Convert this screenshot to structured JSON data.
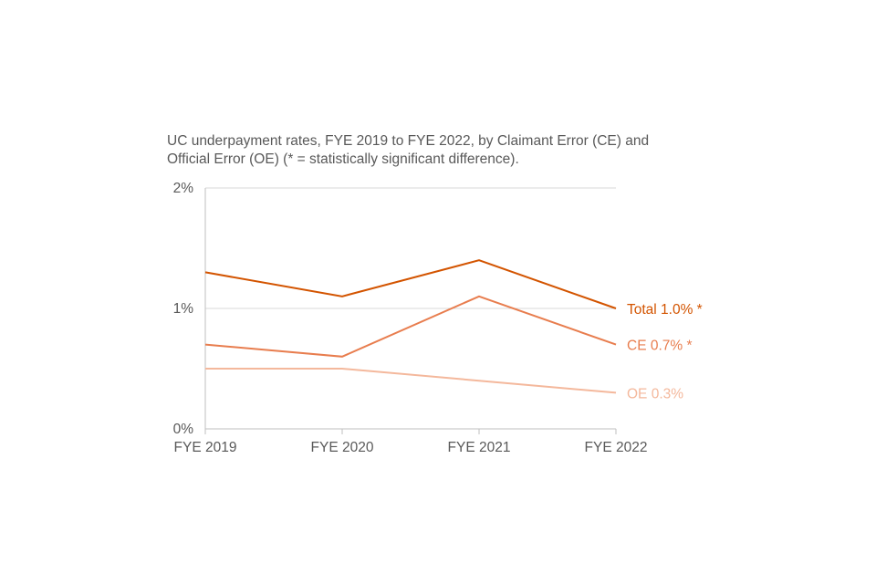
{
  "chart_data": {
    "type": "line",
    "title_lines": [
      "UC underpayment rates, FYE 2019 to FYE 2022, by Claimant Error (CE) and",
      "Official Error (OE) (* = statistically significant difference)."
    ],
    "categories": [
      "FYE 2019",
      "FYE 2020",
      "FYE 2021",
      "FYE 2022"
    ],
    "y_ticks": [
      {
        "value": 0,
        "label": "0%"
      },
      {
        "value": 1,
        "label": "1%"
      },
      {
        "value": 2,
        "label": "2%"
      }
    ],
    "ylim": [
      0,
      2
    ],
    "grid": true,
    "series": [
      {
        "name": "Total",
        "end_label": "Total 1.0% *",
        "color": "#d35400",
        "values": [
          1.3,
          1.1,
          1.4,
          1.0
        ]
      },
      {
        "name": "CE",
        "end_label": "CE 0.7% *",
        "color": "#e87d4e",
        "values": [
          0.7,
          0.6,
          1.1,
          0.7
        ]
      },
      {
        "name": "OE",
        "end_label": "OE 0.3%",
        "color": "#f4b89c",
        "values": [
          0.5,
          0.5,
          0.4,
          0.3
        ]
      }
    ]
  }
}
